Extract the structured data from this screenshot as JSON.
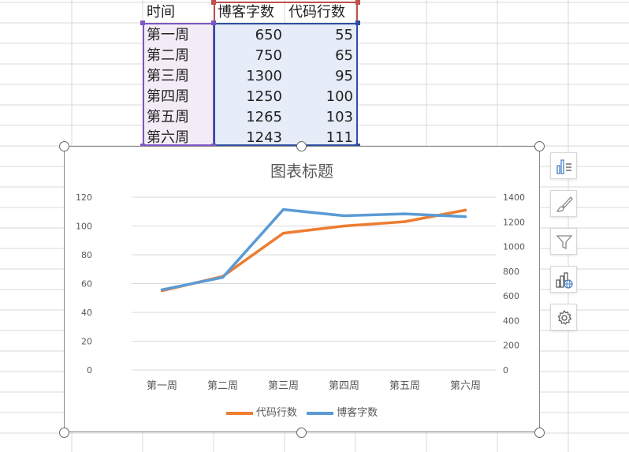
{
  "sheet": {
    "header": {
      "time": "时间",
      "blog": "博客字数",
      "code": "代码行数"
    },
    "rows": [
      {
        "week": "第一周",
        "blog": "650",
        "code": "55"
      },
      {
        "week": "第二周",
        "blog": "750",
        "code": "65"
      },
      {
        "week": "第三周",
        "blog": "1300",
        "code": "95"
      },
      {
        "week": "第四周",
        "blog": "1250",
        "code": "100"
      },
      {
        "week": "第五周",
        "blog": "1265",
        "code": "103"
      },
      {
        "week": "第六周",
        "blog": "1243",
        "code": "111"
      }
    ]
  },
  "chart_data": {
    "type": "line",
    "title": "图表标题",
    "categories": [
      "第一周",
      "第二周",
      "第三周",
      "第四周",
      "第五周",
      "第六周"
    ],
    "series": [
      {
        "name": "代码行数",
        "values": [
          55,
          65,
          95,
          100,
          103,
          111
        ],
        "axis": "left",
        "color": "#ed7d31"
      },
      {
        "name": "博客字数",
        "values": [
          650,
          750,
          1300,
          1250,
          1265,
          1243
        ],
        "axis": "right",
        "color": "#5b9bd5"
      }
    ],
    "y_left": {
      "min": 0,
      "max": 120,
      "ticks": [
        "0",
        "20",
        "40",
        "60",
        "80",
        "100",
        "120"
      ]
    },
    "y_right": {
      "min": 0,
      "max": 1400,
      "ticks": [
        "0",
        "200",
        "400",
        "600",
        "800",
        "1000",
        "1200",
        "1400"
      ]
    },
    "grid": true,
    "legend_position": "bottom"
  },
  "side_toolbar": {
    "icons": [
      "chart-elements-icon",
      "chart-style-icon",
      "chart-filter-icon",
      "chart-type-icon",
      "chart-settings-icon"
    ]
  },
  "colors": {
    "range_time": "#7e57c2",
    "range_blog": "#c0504d",
    "range_code": "#2e4fa0",
    "fill_time": "#f3ecf6",
    "fill_values": "#e6ecf8",
    "gridline": "#d9d9d9"
  }
}
